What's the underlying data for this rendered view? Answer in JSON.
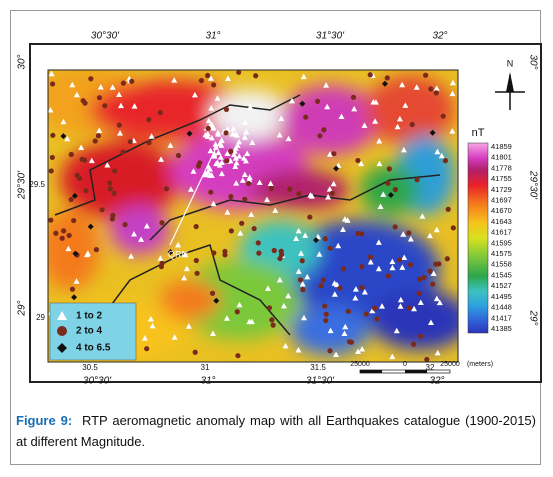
{
  "figure": {
    "map": {
      "top_labels": [
        "30°30'",
        "31°",
        "31°30'",
        "32°"
      ],
      "bottom_labels": [
        "30°30'",
        "31°",
        "31°30'",
        "32°"
      ],
      "bottom_inner_labels": [
        "30.5",
        "31",
        "31.5",
        "32"
      ],
      "left_labels": [
        "30°",
        "29°30'",
        "29°"
      ],
      "left_inner_labels": [
        "29.5",
        "29"
      ],
      "right_labels": [
        "30°",
        "29°30'",
        "29°"
      ],
      "annotation": "QRN",
      "north": "N",
      "scale_labels": [
        "25000",
        "0",
        "25000",
        "(meters)"
      ],
      "colorbar": {
        "title": "nT",
        "labels": [
          41859,
          41801,
          41778,
          41755,
          41729,
          41697,
          41670,
          41643,
          41617,
          41595,
          41575,
          41558,
          41545,
          41527,
          41495,
          41448,
          41417,
          41385
        ]
      },
      "legend": [
        "1 to 2",
        "2 to 4",
        "4 to 6.5"
      ]
    },
    "caption": {
      "label": "Figure 9:",
      "text": "RTP aeromagnetic anomaly map with all Earthquakes catalogue (1900-2015) at different Magnitude."
    }
  }
}
